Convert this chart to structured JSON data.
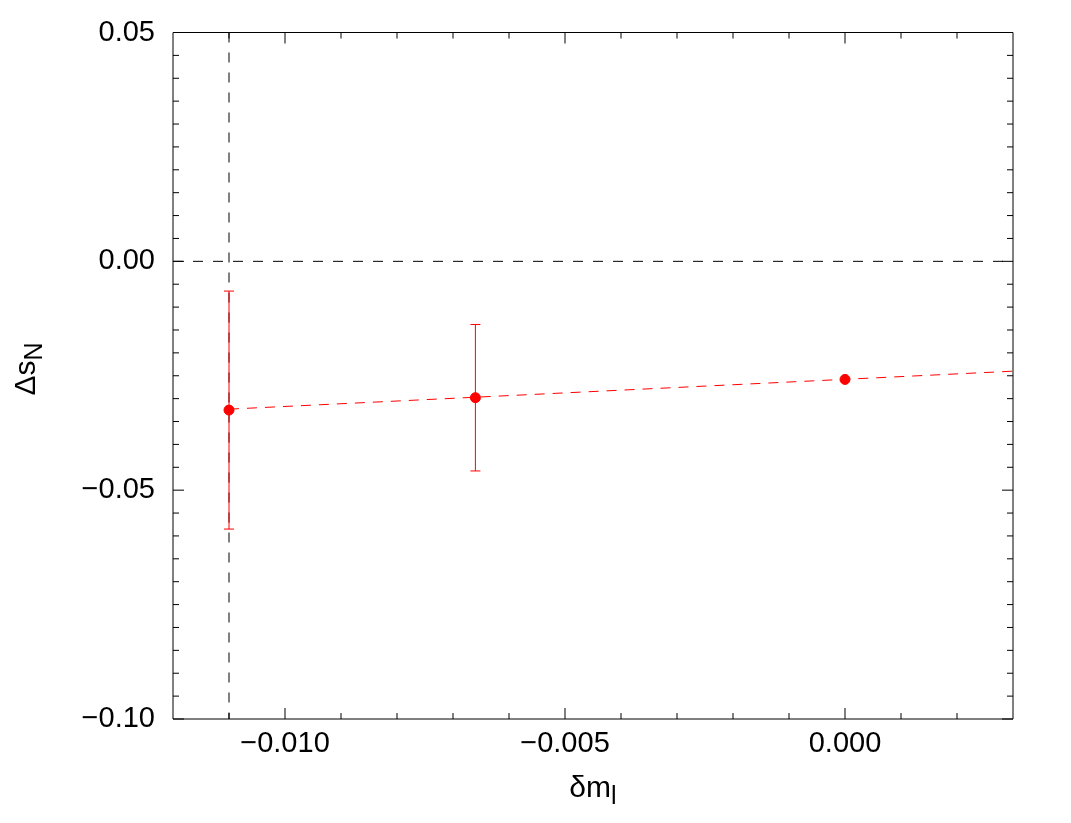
{
  "chart_data": {
    "type": "scatter",
    "xlabel": "δm$_{l}$",
    "ylabel": "Δs$_{N}$",
    "xlim": [
      -0.012,
      0.003
    ],
    "ylim": [
      -0.1,
      0.05
    ],
    "xticks": [
      {
        "value": -0.011,
        "label": null
      },
      {
        "value": -0.01,
        "label": "−0.010"
      },
      {
        "value": -0.009,
        "label": null
      },
      {
        "value": -0.008,
        "label": null
      },
      {
        "value": -0.007,
        "label": null
      },
      {
        "value": -0.006,
        "label": null
      },
      {
        "value": -0.005,
        "label": "−0.005"
      },
      {
        "value": -0.004,
        "label": null
      },
      {
        "value": -0.003,
        "label": null
      },
      {
        "value": -0.002,
        "label": null
      },
      {
        "value": -0.001,
        "label": null
      },
      {
        "value": 0,
        "label": "0.000"
      },
      {
        "value": 0.001,
        "label": null
      },
      {
        "value": 0.002,
        "label": null
      }
    ],
    "yticks": [
      {
        "value": -0.1,
        "label": "−0.10"
      },
      {
        "value": -0.095,
        "label": null
      },
      {
        "value": -0.09,
        "label": null
      },
      {
        "value": -0.085,
        "label": null
      },
      {
        "value": -0.08,
        "label": null
      },
      {
        "value": -0.075,
        "label": null
      },
      {
        "value": -0.07,
        "label": null
      },
      {
        "value": -0.065,
        "label": null
      },
      {
        "value": -0.06,
        "label": null
      },
      {
        "value": -0.055,
        "label": null
      },
      {
        "value": -0.05,
        "label": "−0.05"
      },
      {
        "value": -0.045,
        "label": null
      },
      {
        "value": -0.04,
        "label": null
      },
      {
        "value": -0.035,
        "label": null
      },
      {
        "value": -0.03,
        "label": null
      },
      {
        "value": -0.025,
        "label": null
      },
      {
        "value": -0.02,
        "label": null
      },
      {
        "value": -0.015,
        "label": null
      },
      {
        "value": -0.01,
        "label": null
      },
      {
        "value": -0.005,
        "label": null
      },
      {
        "value": 0,
        "label": "0.00"
      },
      {
        "value": 0.005,
        "label": null
      },
      {
        "value": 0.01,
        "label": null
      },
      {
        "value": 0.015,
        "label": null
      },
      {
        "value": 0.02,
        "label": null
      },
      {
        "value": 0.025,
        "label": null
      },
      {
        "value": 0.03,
        "label": null
      },
      {
        "value": 0.035,
        "label": null
      },
      {
        "value": 0.04,
        "label": null
      },
      {
        "value": 0.045,
        "label": null
      },
      0.05
    ],
    "ref_lines": [
      {
        "axis": "x",
        "value": -0.011,
        "color": "#000000",
        "line_style": "dashed"
      },
      {
        "axis": "y",
        "value": 0,
        "color": "#000000",
        "line_style": "dashed"
      }
    ],
    "series": [
      {
        "type": "line",
        "color": "#ff0000",
        "x": [
          -0.011,
          0.003
        ],
        "values": [
          -0.0323,
          -0.024
        ],
        "marker": "none",
        "line_style": "dashed"
      },
      {
        "type": "scatter",
        "color": "#ff0000",
        "x": [
          -0.011
        ],
        "values": [
          -0.0325
        ],
        "errors": [
          0.026
        ],
        "marker": "circle"
      },
      {
        "type": "scatter",
        "color": "#ff0000",
        "x": [
          -0.0066,
          0
        ],
        "values": [
          -0.0298,
          -0.0258
        ],
        "errors": [
          0.016,
          null
        ],
        "marker": "circle"
      }
    ]
  }
}
